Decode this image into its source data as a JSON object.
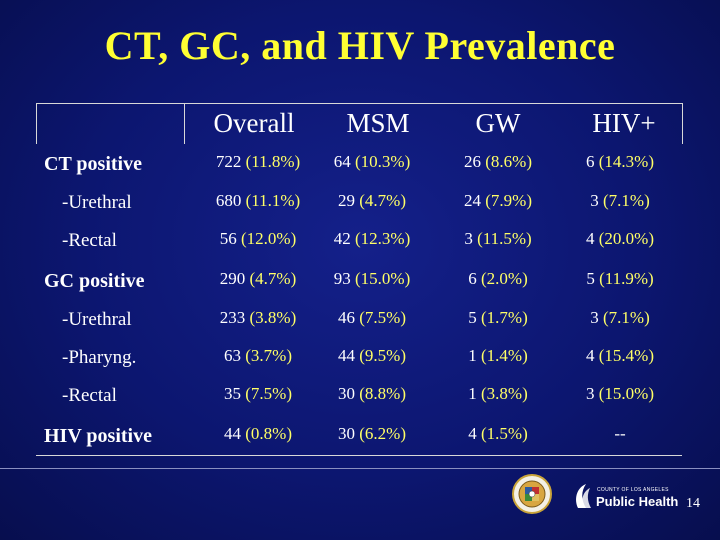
{
  "title": "CT, GC, and HIV Prevalence",
  "table": {
    "columns": [
      "Overall",
      "MSM",
      "GW",
      "HIV+"
    ],
    "rows": [
      {
        "label": "CT positive",
        "kind": "main",
        "cells": [
          {
            "n": "722",
            "pct": "(11.8%)"
          },
          {
            "n": "64",
            "pct": "(10.3%)"
          },
          {
            "n": "26",
            "pct": "(8.6%)"
          },
          {
            "n": "6",
            "pct": "(14.3%)"
          }
        ]
      },
      {
        "label": "-Urethral",
        "kind": "sub",
        "cells": [
          {
            "n": "680",
            "pct": "(11.1%)"
          },
          {
            "n": "29",
            "pct": "(4.7%)"
          },
          {
            "n": "24",
            "pct": "(7.9%)"
          },
          {
            "n": "3",
            "pct": "(7.1%)"
          }
        ]
      },
      {
        "label": "-Rectal",
        "kind": "sub",
        "cells": [
          {
            "n": "56",
            "pct": "(12.0%)"
          },
          {
            "n": "42",
            "pct": "(12.3%)"
          },
          {
            "n": "3",
            "pct": "(11.5%)"
          },
          {
            "n": "4",
            "pct": "(20.0%)"
          }
        ]
      },
      {
        "label": "GC positive",
        "kind": "main",
        "cells": [
          {
            "n": "290",
            "pct": "(4.7%)"
          },
          {
            "n": "93",
            "pct": "(15.0%)"
          },
          {
            "n": "6",
            "pct": "(2.0%)"
          },
          {
            "n": "5",
            "pct": "(11.9%)"
          }
        ]
      },
      {
        "label": "-Urethral",
        "kind": "sub",
        "cells": [
          {
            "n": "233",
            "pct": "(3.8%)"
          },
          {
            "n": "46",
            "pct": "(7.5%)"
          },
          {
            "n": "5",
            "pct": "(1.7%)"
          },
          {
            "n": "3",
            "pct": "(7.1%)"
          }
        ]
      },
      {
        "label": "-Pharyng.",
        "kind": "sub",
        "cells": [
          {
            "n": "63",
            "pct": "(3.7%)"
          },
          {
            "n": "44",
            "pct": "(9.5%)"
          },
          {
            "n": "1",
            "pct": "(1.4%)"
          },
          {
            "n": "4",
            "pct": "(15.4%)"
          }
        ]
      },
      {
        "label": "-Rectal",
        "kind": "sub",
        "cells": [
          {
            "n": "35",
            "pct": "(7.5%)"
          },
          {
            "n": "30",
            "pct": "(8.8%)"
          },
          {
            "n": "1",
            "pct": "(3.8%)"
          },
          {
            "n": "3",
            "pct": "(15.0%)"
          }
        ]
      },
      {
        "label": "HIV positive",
        "kind": "main",
        "cells": [
          {
            "n": "44",
            "pct": "(0.8%)"
          },
          {
            "n": "30",
            "pct": "(6.2%)"
          },
          {
            "n": "4",
            "pct": "(1.5%)"
          },
          {
            "n": "--",
            "pct": ""
          }
        ]
      }
    ]
  },
  "footer": {
    "logo_small_text": "COUNTY OF LOS ANGELES",
    "logo_text": "Public Health",
    "page_number": "14"
  },
  "colors": {
    "background": "#0c1670",
    "title": "#ffff33",
    "percent": "#ffff66",
    "text": "#ffffff"
  }
}
